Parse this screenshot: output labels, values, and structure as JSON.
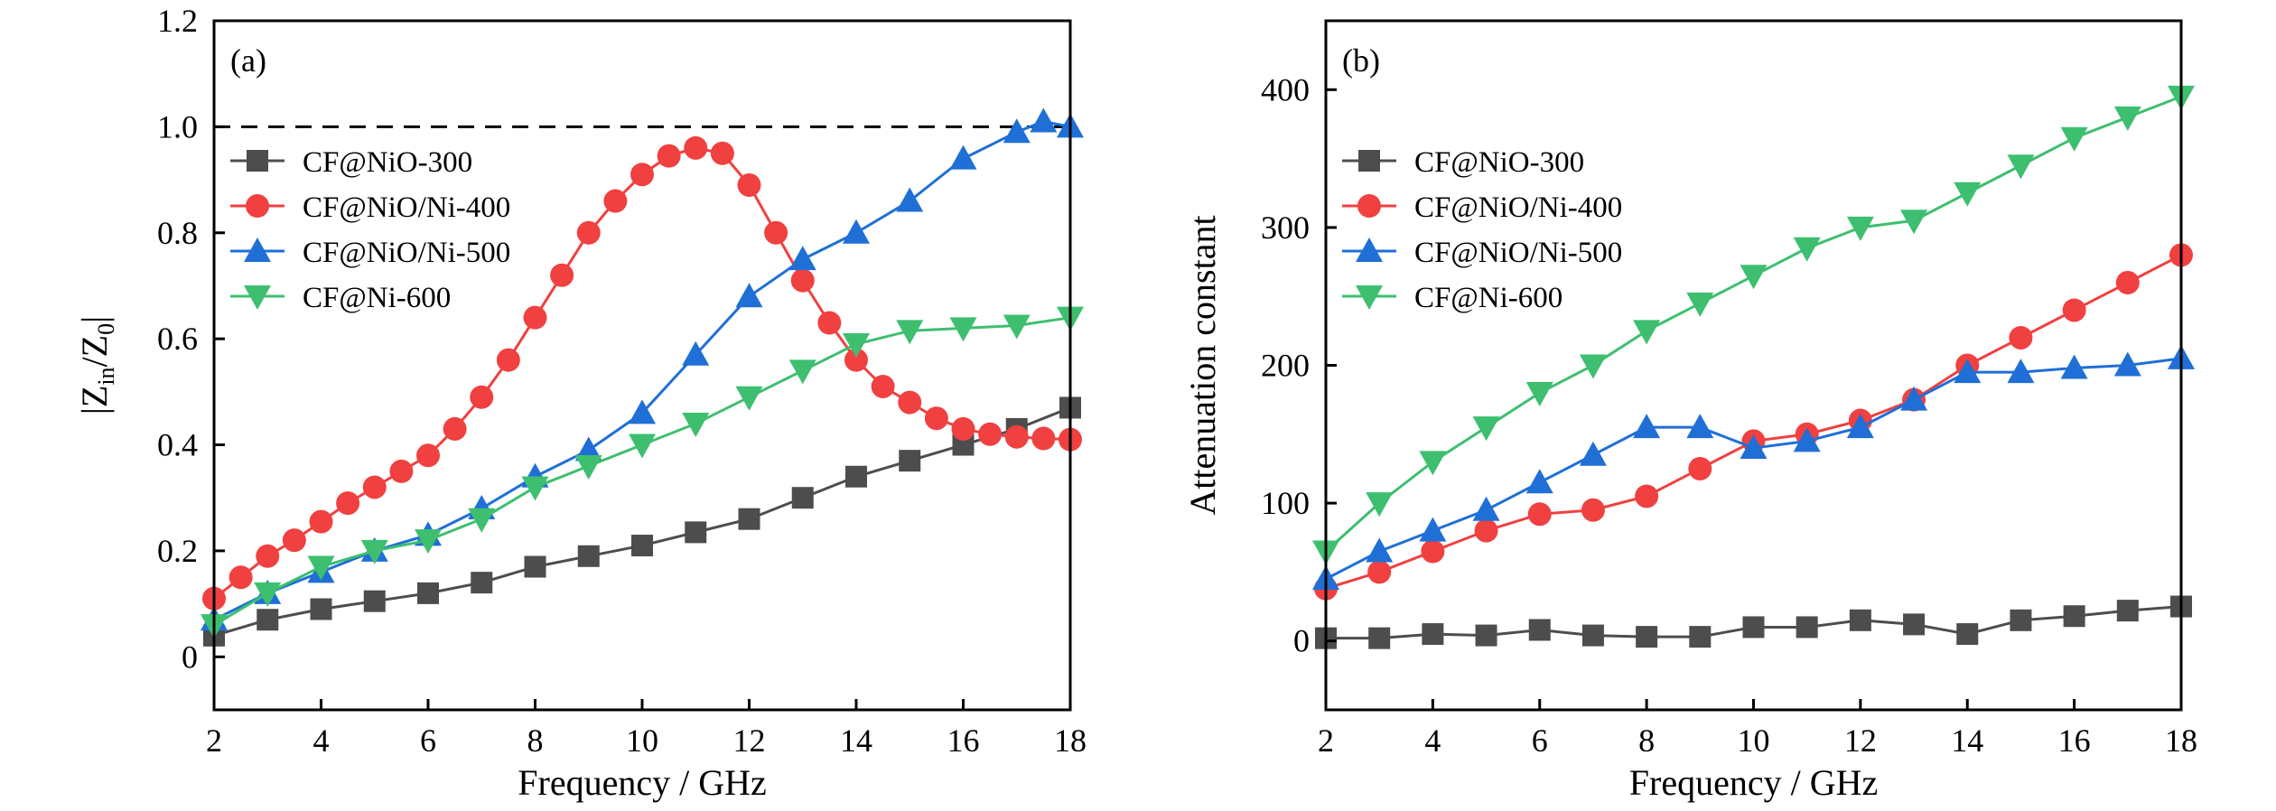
{
  "chart_data": [
    {
      "type": "scatter",
      "panel_label": "(a)",
      "xlabel": "Frequency / GHz",
      "ylabel": "|Z_in/Z_0|",
      "xlim": [
        2,
        18
      ],
      "ylim": [
        -0.1,
        1.2
      ],
      "xticks": [
        2,
        4,
        6,
        8,
        10,
        12,
        14,
        16,
        18
      ],
      "yticks": [
        0,
        0.2,
        0.4,
        0.6,
        0.8,
        1.0,
        1.2
      ],
      "ytick_labels": [
        "0",
        "0.2",
        "0.4",
        "0.6",
        "0.8",
        "1.0",
        "1.2"
      ],
      "reference_line_y": 1.0,
      "legend_position": "upper-left",
      "grid": false,
      "series": [
        {
          "name": "CF@NiO-300",
          "color": "#4d4d4d",
          "marker": "square",
          "x": [
            2,
            3,
            4,
            5,
            6,
            7,
            8,
            9,
            10,
            11,
            12,
            13,
            14,
            15,
            16,
            17,
            18
          ],
          "y": [
            0.04,
            0.07,
            0.09,
            0.105,
            0.12,
            0.14,
            0.17,
            0.19,
            0.21,
            0.235,
            0.26,
            0.3,
            0.34,
            0.37,
            0.4,
            0.43,
            0.47
          ]
        },
        {
          "name": "CF@NiO/Ni-400",
          "color": "#f04040",
          "marker": "circle",
          "x": [
            2,
            2.5,
            3,
            3.5,
            4,
            4.5,
            5,
            5.5,
            6,
            6.5,
            7,
            7.5,
            8,
            8.5,
            9,
            9.5,
            10,
            10.5,
            11,
            11.5,
            12,
            12.5,
            13,
            13.5,
            14,
            14.5,
            15,
            15.5,
            16,
            16.5,
            17,
            17.5,
            18
          ],
          "y": [
            0.11,
            0.15,
            0.19,
            0.22,
            0.255,
            0.29,
            0.32,
            0.35,
            0.38,
            0.43,
            0.49,
            0.56,
            0.64,
            0.72,
            0.8,
            0.86,
            0.91,
            0.945,
            0.96,
            0.95,
            0.89,
            0.8,
            0.71,
            0.63,
            0.56,
            0.51,
            0.48,
            0.45,
            0.43,
            0.42,
            0.415,
            0.412,
            0.41
          ]
        },
        {
          "name": "CF@NiO/Ni-500",
          "color": "#1f6fd6",
          "marker": "triangle-up",
          "x": [
            2,
            3,
            4,
            5,
            6,
            7,
            8,
            9,
            10,
            11,
            12,
            13,
            14,
            15,
            16,
            17,
            17.5,
            18
          ],
          "y": [
            0.07,
            0.12,
            0.16,
            0.2,
            0.23,
            0.28,
            0.34,
            0.39,
            0.46,
            0.57,
            0.68,
            0.75,
            0.8,
            0.86,
            0.94,
            0.99,
            1.01,
            1.0
          ]
        },
        {
          "name": "CF@Ni-600",
          "color": "#3dbf6f",
          "marker": "triangle-down",
          "x": [
            2,
            3,
            4,
            5,
            6,
            7,
            8,
            9,
            10,
            11,
            12,
            13,
            14,
            15,
            16,
            17,
            18
          ],
          "y": [
            0.06,
            0.12,
            0.17,
            0.2,
            0.22,
            0.26,
            0.32,
            0.36,
            0.4,
            0.44,
            0.49,
            0.54,
            0.59,
            0.615,
            0.62,
            0.625,
            0.64
          ]
        }
      ]
    },
    {
      "type": "scatter",
      "panel_label": "(b)",
      "xlabel": "Frequency / GHz",
      "ylabel": "Attenuation constant",
      "xlim": [
        2,
        18
      ],
      "ylim": [
        -50,
        450
      ],
      "xticks": [
        2,
        4,
        6,
        8,
        10,
        12,
        14,
        16,
        18
      ],
      "yticks": [
        0,
        100,
        200,
        300,
        400
      ],
      "ytick_labels": [
        "0",
        "100",
        "200",
        "300",
        "400"
      ],
      "legend_position": "upper-left",
      "grid": false,
      "series": [
        {
          "name": "CF@NiO-300",
          "color": "#4d4d4d",
          "marker": "square",
          "x": [
            2,
            3,
            4,
            5,
            6,
            7,
            8,
            9,
            10,
            11,
            12,
            13,
            14,
            15,
            16,
            17,
            18
          ],
          "y": [
            2,
            2,
            5,
            4,
            8,
            4,
            3,
            3,
            10,
            10,
            15,
            12,
            5,
            15,
            18,
            22,
            25
          ]
        },
        {
          "name": "CF@NiO/Ni-400",
          "color": "#f04040",
          "marker": "circle",
          "x": [
            2,
            3,
            4,
            5,
            6,
            7,
            8,
            9,
            10,
            11,
            12,
            13,
            14,
            15,
            16,
            17,
            18
          ],
          "y": [
            38,
            50,
            65,
            80,
            92,
            95,
            105,
            125,
            145,
            150,
            160,
            175,
            200,
            220,
            240,
            260,
            280
          ]
        },
        {
          "name": "CF@NiO/Ni-500",
          "color": "#1f6fd6",
          "marker": "triangle-up",
          "x": [
            2,
            3,
            4,
            5,
            6,
            7,
            8,
            9,
            10,
            11,
            12,
            13,
            14,
            15,
            16,
            17,
            18
          ],
          "y": [
            45,
            65,
            80,
            95,
            115,
            135,
            155,
            155,
            140,
            145,
            155,
            175,
            195,
            195,
            198,
            200,
            205
          ]
        },
        {
          "name": "CF@Ni-600",
          "color": "#3dbf6f",
          "marker": "triangle-down",
          "x": [
            2,
            3,
            4,
            5,
            6,
            7,
            8,
            9,
            10,
            11,
            12,
            13,
            14,
            15,
            16,
            17,
            18
          ],
          "y": [
            65,
            100,
            130,
            155,
            180,
            200,
            225,
            245,
            265,
            285,
            300,
            305,
            325,
            345,
            365,
            380,
            395
          ]
        }
      ]
    }
  ]
}
